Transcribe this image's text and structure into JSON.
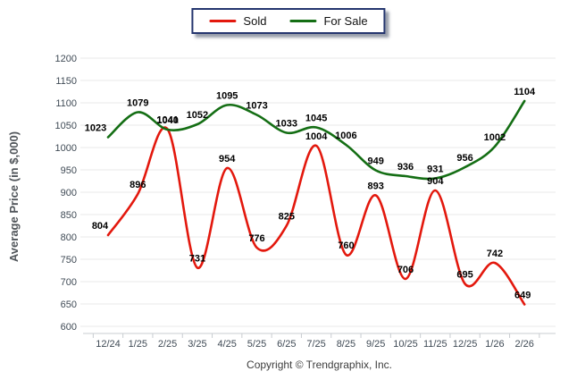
{
  "legend": {
    "items": [
      {
        "label": "Sold",
        "color": "#e3180d"
      },
      {
        "label": "For Sale",
        "color": "#146e14"
      }
    ]
  },
  "y_axis": {
    "title": "Average Price (in $,000)",
    "ticks": [
      600,
      650,
      700,
      750,
      800,
      850,
      900,
      950,
      1000,
      1050,
      1100,
      1150,
      1200
    ]
  },
  "x_axis": {
    "categories": [
      "12/24",
      "1/25",
      "2/25",
      "3/25",
      "4/25",
      "5/25",
      "6/25",
      "7/25",
      "8/25",
      "9/25",
      "10/25",
      "11/25",
      "12/25",
      "1/26",
      "2/26"
    ]
  },
  "chart_data": {
    "type": "line",
    "categories": [
      "12/24",
      "1/25",
      "2/25",
      "3/25",
      "4/25",
      "5/25",
      "6/25",
      "7/25",
      "8/25",
      "9/25",
      "10/25",
      "11/25",
      "12/25",
      "1/26",
      "2/26"
    ],
    "series": [
      {
        "name": "Sold",
        "color": "#e3180d",
        "values": [
          804,
          896,
          1041,
          731,
          954,
          776,
          825,
          1004,
          760,
          893,
          706,
          904,
          695,
          742,
          649
        ]
      },
      {
        "name": "For Sale",
        "color": "#146e14",
        "values": [
          1023,
          1079,
          1040,
          1052,
          1095,
          1073,
          1033,
          1045,
          1006,
          949,
          936,
          931,
          956,
          1002,
          1104
        ]
      }
    ],
    "title": "",
    "xlabel": "",
    "ylabel": "Average Price (in $,000)",
    "ylim": [
      600,
      1200
    ],
    "ytick_step": 50,
    "grid": true,
    "legend_position": "top-center",
    "data_labels": true,
    "colors": {
      "grid": "#e8e8e8",
      "axis": "#c8ccd0",
      "tick_text": "#3f4a55",
      "axis_title": "#50555a",
      "data_label": "#000000"
    }
  },
  "footer": {
    "copyright": "Copyright © Trendgraphix, Inc."
  }
}
